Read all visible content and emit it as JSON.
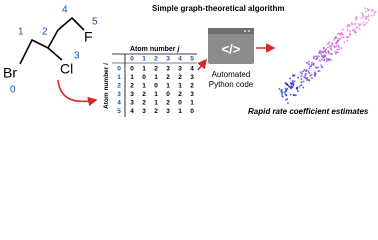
{
  "title": "Simple graph-theoretical algorithm",
  "molecule": {
    "atoms": [
      "Br",
      "Cl",
      "F"
    ],
    "numbers": [
      "0",
      "1",
      "2",
      "3",
      "4",
      "5"
    ]
  },
  "table": {
    "column_title": {
      "text": "Atom number",
      "var": "j"
    },
    "row_title": {
      "text": "Atom number",
      "var": "i"
    },
    "columns": [
      "0",
      "1",
      "2",
      "3",
      "4",
      "5"
    ],
    "rows": [
      {
        "index": "0",
        "cells": [
          0,
          1,
          2,
          3,
          3,
          4
        ]
      },
      {
        "index": "1",
        "cells": [
          1,
          0,
          1,
          2,
          2,
          3
        ]
      },
      {
        "index": "2",
        "cells": [
          2,
          1,
          0,
          1,
          1,
          2
        ]
      },
      {
        "index": "3",
        "cells": [
          3,
          2,
          1,
          0,
          2,
          3
        ]
      },
      {
        "index": "4",
        "cells": [
          3,
          2,
          1,
          2,
          0,
          1
        ]
      },
      {
        "index": "5",
        "cells": [
          4,
          3,
          2,
          3,
          1,
          0
        ]
      }
    ]
  },
  "code": {
    "symbol": "</>",
    "label": [
      "Automated",
      "Python code"
    ]
  },
  "caption": "Rapid rate coefficient estimates"
}
